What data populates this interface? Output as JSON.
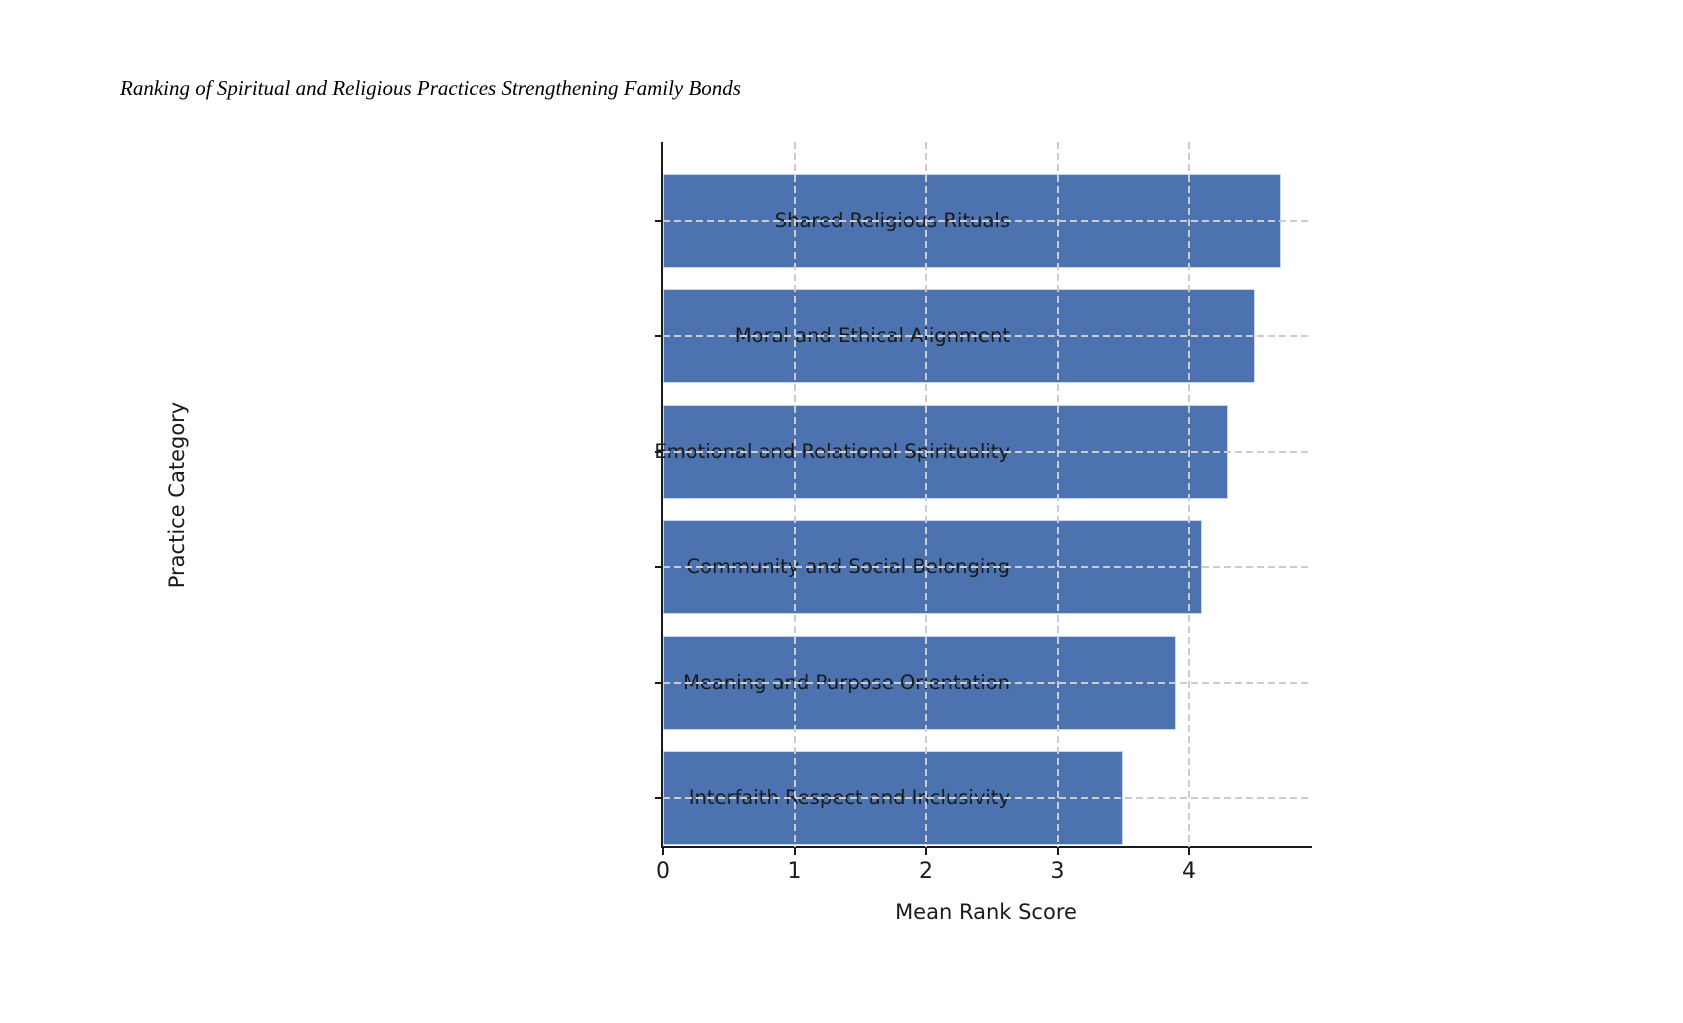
{
  "chart_data": {
    "type": "bar",
    "orientation": "horizontal",
    "title": "Ranking of Spiritual and Religious Practices Strengthening Family Bonds",
    "xlabel": "Mean Rank Score",
    "ylabel": "Practice Category",
    "categories": [
      "Shared Religious Rituals",
      "Moral and Ethical Alignment",
      "Emotional and Relational Spirituality",
      "Community and Social Belonging",
      "Meaning and Purpose Orientation",
      "Interfaith Respect and Inclusivity"
    ],
    "values": [
      4.7,
      4.5,
      4.3,
      4.1,
      3.9,
      3.5
    ],
    "xlim": [
      0,
      4.92
    ],
    "xticks": [
      0,
      1,
      2,
      3,
      4
    ],
    "grid": "dashed",
    "legend": "none",
    "bar_color": "#4C72B0",
    "spine_color": "#1a1a1a",
    "gridline_color": "#cccccc",
    "background_color": "#ffffff"
  }
}
